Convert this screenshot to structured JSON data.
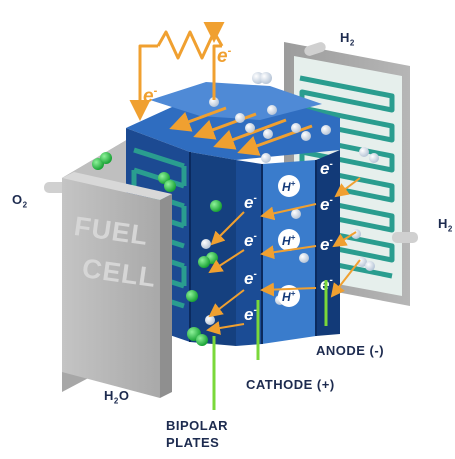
{
  "title_labels": {
    "h2_top": "H",
    "h2_top_sub": "2",
    "h2_right": "H",
    "h2_right_sub": "2",
    "o2": "O",
    "o2_sub": "2",
    "h2o_h": "H",
    "h2o_sub": "2",
    "h2o_o": "O"
  },
  "callouts": {
    "anode": "ANODE (-)",
    "cathode": "CATHODE (+)",
    "bipolar_line1": "BIPOLAR",
    "bipolar_line2": "PLATES"
  },
  "casing_text": {
    "line1": "FUEL",
    "line2": "CELL"
  },
  "particles": {
    "electron": "e",
    "electron_sign": "-",
    "proton": "H",
    "proton_sign": "+"
  },
  "colors": {
    "casing_front": "#b9b9b9",
    "casing_side": "#a2a2a2",
    "casing_top": "#cfcfcf",
    "stack_dark": "#143a7a",
    "stack_mid": "#2a64b4",
    "stack_light": "#4f8ad6",
    "circuit_orange": "#f0a030",
    "oxygen_green": "#2fc24a",
    "anode_plate": "#e8f2ee",
    "channel_teal": "#2a9d8f",
    "callout_line": "#7ad83a",
    "label_text": "#1d2b4f"
  },
  "icons": [
    "resistor-icon",
    "electron-icon",
    "proton-icon",
    "oxygen-molecule-icon",
    "hydrogen-molecule-icon",
    "pipe-icon"
  ]
}
